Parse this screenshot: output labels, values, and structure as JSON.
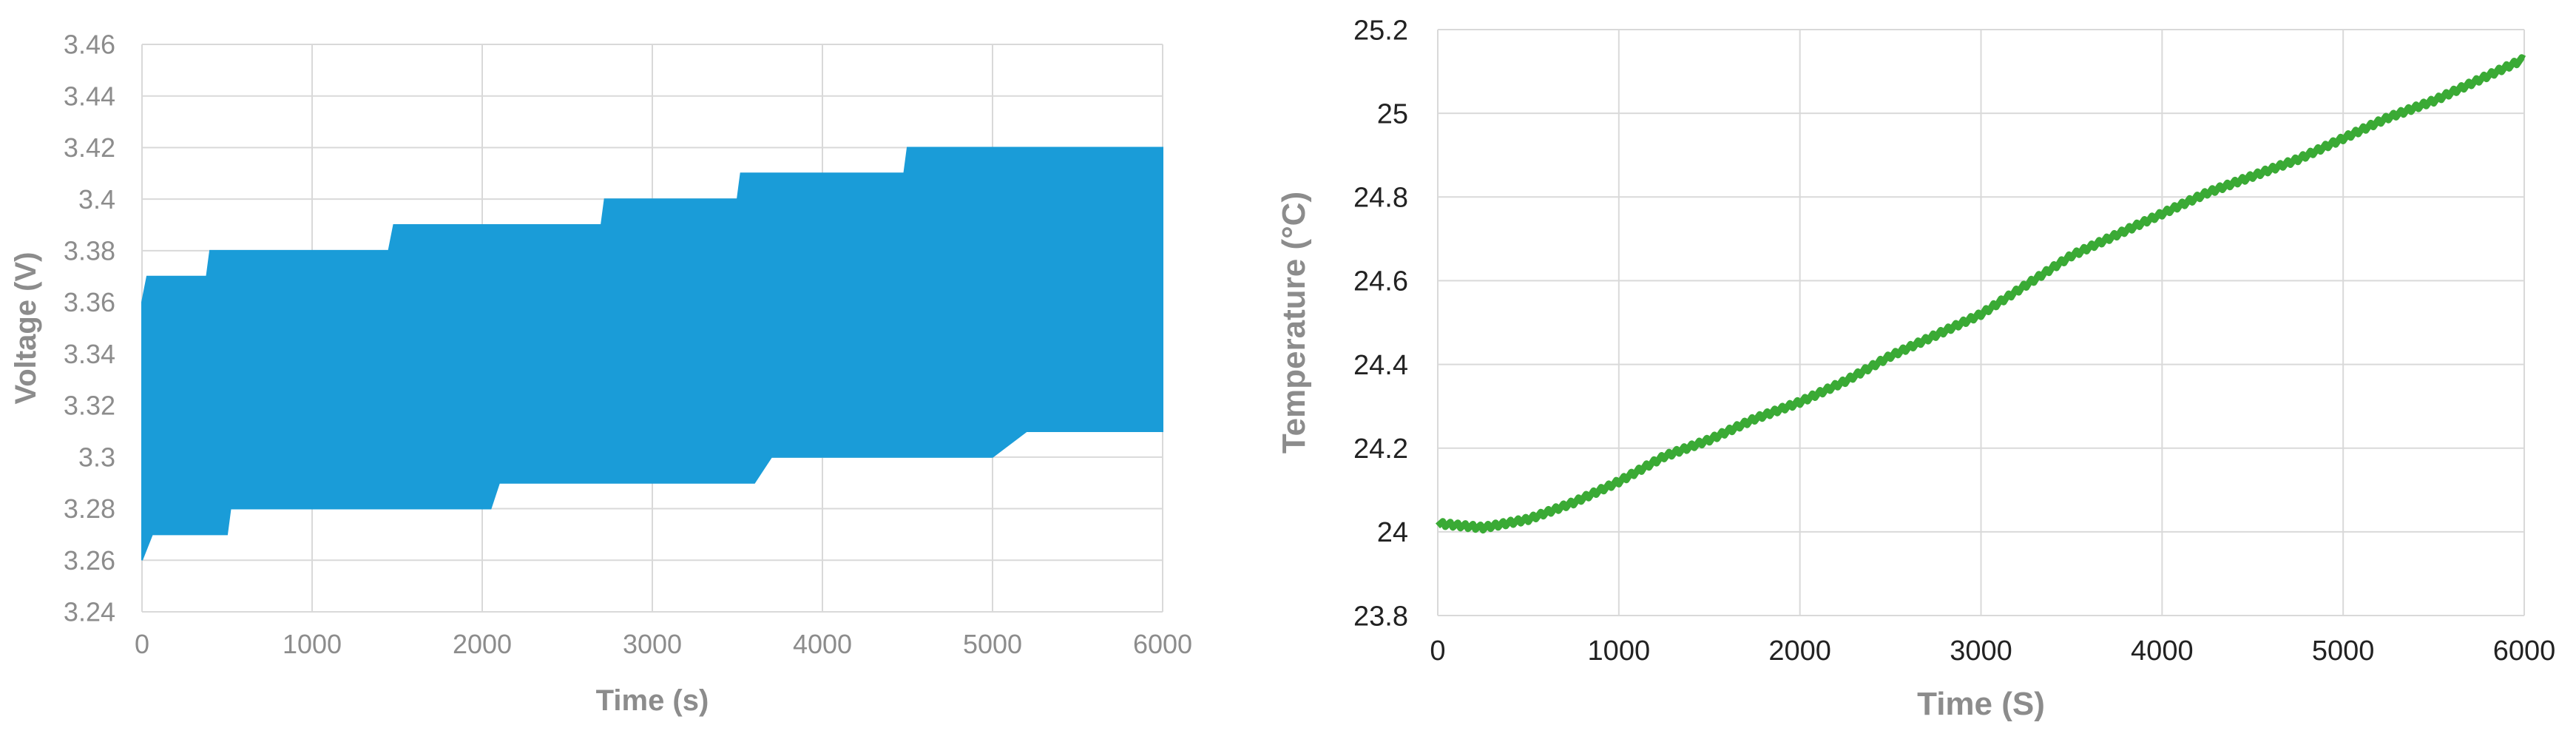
{
  "chart_data": [
    {
      "type": "area",
      "title": "",
      "xlabel": "Time (s)",
      "ylabel": "Voltage (V)",
      "xlim": [
        0,
        6000
      ],
      "ylim": [
        3.24,
        3.46
      ],
      "x_ticks": [
        "0",
        "1000",
        "2000",
        "3000",
        "4000",
        "5000",
        "6000"
      ],
      "y_ticks": [
        "3.24",
        "3.26",
        "3.28",
        "3.3",
        "3.32",
        "3.34",
        "3.36",
        "3.38",
        "3.4",
        "3.42",
        "3.44",
        "3.46"
      ],
      "grid": true,
      "color": "#1a9cd8",
      "series": [
        {
          "upper": [
            [
              0,
              3.36
            ],
            [
              30,
              3.37
            ],
            [
              380,
              3.37
            ],
            [
              400,
              3.38
            ],
            [
              1450,
              3.38
            ],
            [
              1480,
              3.39
            ],
            [
              1500,
              3.39
            ],
            [
              2700,
              3.39
            ],
            [
              2720,
              3.4
            ],
            [
              2830,
              3.4
            ],
            [
              2850,
              3.4
            ],
            [
              3500,
              3.4
            ],
            [
              3520,
              3.41
            ],
            [
              4480,
              3.41
            ],
            [
              4500,
              3.42
            ],
            [
              6000,
              3.42
            ]
          ],
          "lower": [
            [
              0,
              3.26
            ],
            [
              60,
              3.27
            ],
            [
              500,
              3.27
            ],
            [
              520,
              3.28
            ],
            [
              1900,
              3.28
            ],
            [
              2050,
              3.28
            ],
            [
              2100,
              3.29
            ],
            [
              3400,
              3.29
            ],
            [
              3600,
              3.29
            ],
            [
              3700,
              3.3
            ],
            [
              4400,
              3.3
            ],
            [
              4600,
              3.3
            ],
            [
              4700,
              3.3
            ],
            [
              5000,
              3.3
            ],
            [
              5200,
              3.31
            ],
            [
              6000,
              3.31
            ]
          ]
        }
      ]
    },
    {
      "type": "line",
      "title": "",
      "xlabel": "Time (S)",
      "ylabel": "Temperature (°C)",
      "xlim": [
        0,
        6000
      ],
      "ylim": [
        23.8,
        25.2
      ],
      "x_ticks": [
        "0",
        "1000",
        "2000",
        "3000",
        "4000",
        "5000",
        "6000"
      ],
      "y_ticks": [
        "23.8",
        "24",
        "24.2",
        "24.4",
        "24.6",
        "24.8",
        "25",
        "25.2"
      ],
      "grid": true,
      "color": "#3aaa35",
      "series": [
        {
          "x": [
            0,
            250,
            500,
            750,
            1000,
            1250,
            1500,
            1750,
            2000,
            2250,
            2500,
            2750,
            3000,
            3250,
            3500,
            3750,
            4000,
            4250,
            4500,
            4750,
            5000,
            5250,
            5500,
            5750,
            6000
          ],
          "values": [
            24.02,
            24.01,
            24.03,
            24.07,
            24.12,
            24.18,
            24.22,
            24.27,
            24.31,
            24.36,
            24.42,
            24.47,
            24.52,
            24.59,
            24.66,
            24.71,
            24.76,
            24.81,
            24.85,
            24.89,
            24.94,
            24.99,
            25.03,
            25.08,
            25.13
          ]
        }
      ]
    }
  ]
}
